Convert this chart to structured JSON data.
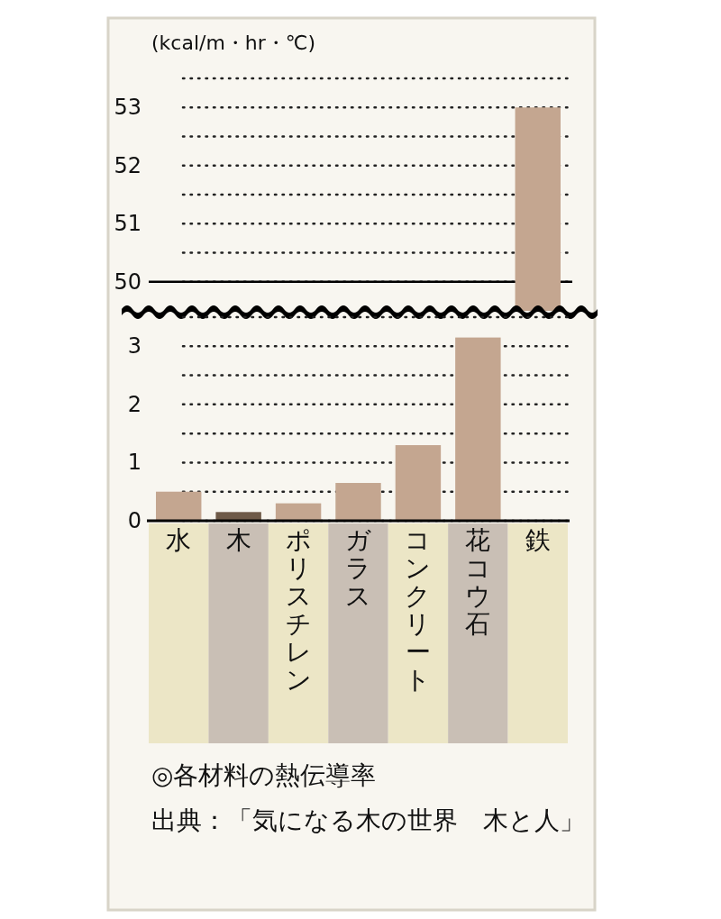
{
  "chart_data": [
    {
      "type": "bar",
      "ylabel": "(kcal/m・hr・℃)",
      "categories": [
        "水",
        "木",
        "ポリスチレン",
        "ガラス",
        "コンクリート",
        "花コウ石",
        "鉄"
      ],
      "series": [
        {
          "colors": [
            "#c4a690",
            "#c4a690",
            "#c4a690",
            "#c4a690",
            "#c4a690",
            "#c4a690",
            "#c4a690"
          ],
          "values": [
            null,
            null,
            null,
            null,
            null,
            null,
            53
          ]
        }
      ],
      "ylim": [
        49.5,
        53.5
      ],
      "yticks": [
        50,
        {
          "value": 50.5,
          "label": null
        },
        51,
        {
          "value": 51.5,
          "label": null
        },
        52,
        {
          "value": 52.5,
          "label": null
        },
        53,
        {
          "value": 53.5,
          "label": null
        }
      ],
      "ref_lines": [
        {
          "axis": "y",
          "value": 50,
          "line_style": "solid",
          "color": "#000000"
        }
      ],
      "grid": "y",
      "tick_labels": "y"
    },
    {
      "type": "bar",
      "categories": [
        "水",
        "木",
        "ポリスチレン",
        "ガラス",
        "コンクリート",
        "花コウ石",
        "鉄"
      ],
      "series": [
        {
          "colors": [
            "#c4a690",
            "#6e5a48",
            "#c4a690",
            "#c4a690",
            "#c4a690",
            "#c4a690",
            "#c4a690"
          ],
          "values": [
            0.5,
            0.15,
            0.3,
            0.65,
            1.3,
            3.15,
            null
          ]
        }
      ],
      "ylim": [
        0,
        3.5
      ],
      "yticks": [
        0,
        {
          "value": 0.5,
          "label": null
        },
        1,
        {
          "value": 1.5,
          "label": null
        },
        2,
        {
          "value": 2.5,
          "label": null
        },
        3,
        {
          "value": 3.5,
          "label": null
        }
      ],
      "grid": "y",
      "annotations": [
        "◎各材料の熱伝導率",
        "出典：「気になる木の世界　木と人」"
      ]
    }
  ]
}
